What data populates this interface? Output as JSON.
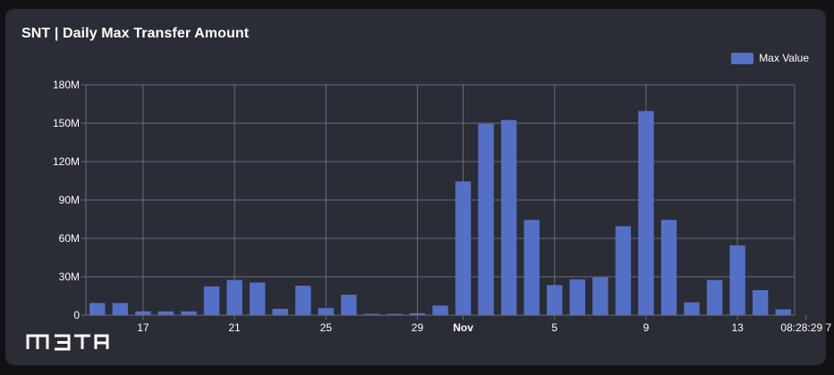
{
  "card": {
    "title": "SNT | Daily Max Transfer Amount"
  },
  "legend": {
    "label": "Max Value"
  },
  "watermark": {
    "text": "m3ta."
  },
  "colors": {
    "bar": "#5470c6",
    "grid": "#6b6e78",
    "text": "#ffffff",
    "card_bg": "#2a2c36"
  },
  "chart_data": {
    "type": "bar",
    "title": "SNT | Daily Max Transfer Amount",
    "xlabel": "",
    "ylabel": "",
    "ylim": [
      0,
      180000000
    ],
    "y_ticks": [
      {
        "value": 0,
        "label": "0"
      },
      {
        "value": 30000000,
        "label": "30M"
      },
      {
        "value": 60000000,
        "label": "60M"
      },
      {
        "value": 90000000,
        "label": "90M"
      },
      {
        "value": 120000000,
        "label": "120M"
      },
      {
        "value": 150000000,
        "label": "150M"
      },
      {
        "value": 180000000,
        "label": "180M"
      }
    ],
    "x_ticks": [
      {
        "day_index": 2,
        "label": "17",
        "bold": false
      },
      {
        "day_index": 6,
        "label": "21",
        "bold": false
      },
      {
        "day_index": 10,
        "label": "25",
        "bold": false
      },
      {
        "day_index": 14,
        "label": "29",
        "bold": false
      },
      {
        "day_index": 16,
        "label": "Nov",
        "bold": true
      },
      {
        "day_index": 20,
        "label": "5",
        "bold": false
      },
      {
        "day_index": 24,
        "label": "9",
        "bold": false
      },
      {
        "day_index": 28,
        "label": "13",
        "bold": false
      },
      {
        "day_index": 31,
        "label": "08:28:29 7",
        "bold": false
      }
    ],
    "grid": true,
    "legend_position": "top-right",
    "series": [
      {
        "name": "Max Value",
        "values": [
          9500000,
          9500000,
          3000000,
          3000000,
          3000000,
          22500000,
          27500000,
          25500000,
          5000000,
          23000000,
          5500000,
          16000000,
          1000000,
          1000000,
          1500000,
          7500000,
          104500000,
          149500000,
          152500000,
          74500000,
          23500000,
          28000000,
          29500000,
          69500000,
          159500000,
          74500000,
          10000000,
          27500000,
          54500000,
          19500000,
          4500000
        ]
      }
    ]
  }
}
